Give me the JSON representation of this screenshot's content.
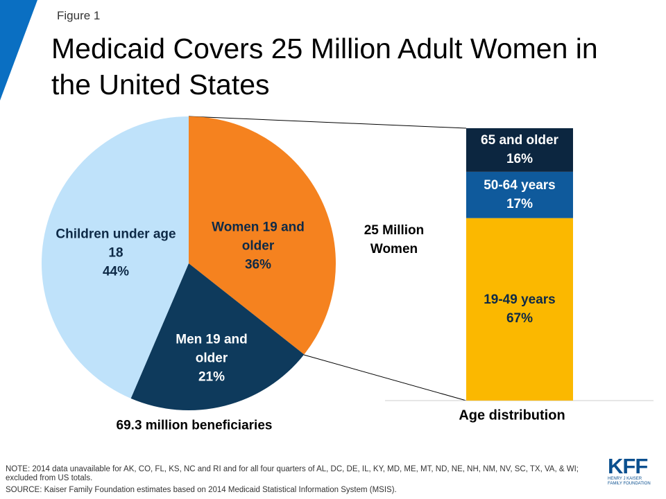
{
  "figure_label": "Figure 1",
  "title": "Medicaid Covers 25 Million Adult Women in the United States",
  "chart_data": [
    {
      "type": "pie",
      "caption": "69.3 million beneficiaries",
      "categories": [
        "Women 19 and older",
        "Men 19 and older",
        "Children under age 18"
      ],
      "values": [
        36,
        21,
        44
      ],
      "value_labels": [
        "36%",
        "21%",
        "44%"
      ],
      "colors": [
        "#f5821f",
        "#0e3a5c",
        "#bfe2fa"
      ]
    },
    {
      "type": "stacked-bar",
      "annotation": "25 Million Women",
      "xlabel": "Age distribution",
      "series": [
        {
          "name": "19-49 years",
          "color": "#fbb800",
          "values": [
            67
          ],
          "value_labels": [
            "67%"
          ]
        },
        {
          "name": "50-64 years",
          "color": "#0f5a9c",
          "values": [
            17
          ],
          "value_labels": [
            "17%"
          ]
        },
        {
          "name": "65 and older",
          "color": "#0c2640",
          "values": [
            16
          ],
          "value_labels": [
            "16%"
          ]
        }
      ]
    }
  ],
  "note": "NOTE: 2014 data unavailable for AK, CO, FL, KS, NC and RI and for all four quarters of AL, DC, DE, IL, KY, MD, ME, MT, ND, NE, NH, NM, NV, SC, TX, VA, & WI; excluded from US totals.",
  "source": "SOURCE: Kaiser Family Foundation estimates based on 2014 Medicaid Statistical Information System (MSIS).",
  "logo": {
    "mark": "KFF",
    "subtitle": "HENRY J KAISER FAMILY FOUNDATION"
  }
}
